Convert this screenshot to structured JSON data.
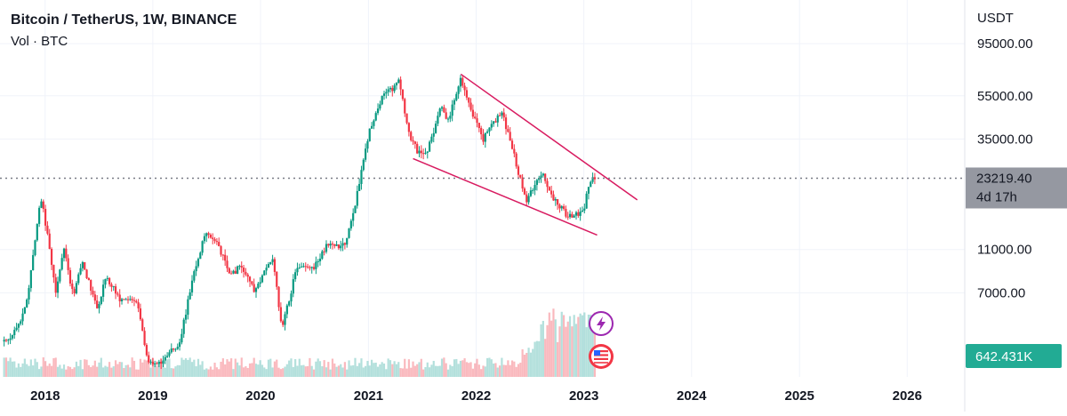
{
  "header": {
    "title": "Bitcoin / TetherUS, 1W, BINANCE",
    "volume_label": "Vol · BTC"
  },
  "colors": {
    "up": "#26a69a",
    "up_candle": "#089981",
    "down": "#f23645",
    "trendline": "#d81b60",
    "grid": "#f0f3fa",
    "price_badge_bg": "#9598a1",
    "volume_badge_bg": "#22ab94",
    "lightning_icon": "#9c27b0",
    "flag_icon": "#f23645"
  },
  "icons": [
    "lightning-icon",
    "us-flag-icon"
  ],
  "chart_data": {
    "type": "candlestick",
    "title": "Bitcoin / TetherUS, 1W, BINANCE",
    "currency": "USDT",
    "scale": "log",
    "grid": true,
    "y_ticks": [
      "95000.00",
      "55000.00",
      "35000.00",
      "11000.00",
      "7000.00"
    ],
    "y_tick_values": [
      95000,
      55000,
      35000,
      11000,
      7000
    ],
    "ylim": [
      2900,
      150000
    ],
    "x_ticks": [
      "2018",
      "2019",
      "2020",
      "2021",
      "2022",
      "2023",
      "2024",
      "2025",
      "2026"
    ],
    "xlim": [
      "2017-08-01",
      "2026-07-15"
    ],
    "last_price": {
      "value": "23219.40",
      "countdown": "4d 17h"
    },
    "volume": {
      "series_name": "Vol · BTC",
      "last_value": "642.431K"
    },
    "price_path": [
      [
        "2017-08-15",
        4200
      ],
      [
        "2017-10-01",
        4800
      ],
      [
        "2017-11-01",
        6500
      ],
      [
        "2017-12-17",
        19500
      ],
      [
        "2018-01-15",
        11500
      ],
      [
        "2018-02-06",
        7000
      ],
      [
        "2018-03-05",
        11000
      ],
      [
        "2018-04-06",
        6800
      ],
      [
        "2018-05-05",
        9800
      ],
      [
        "2018-06-28",
        5900
      ],
      [
        "2018-07-25",
        8300
      ],
      [
        "2018-09-15",
        6400
      ],
      [
        "2018-11-10",
        6350
      ],
      [
        "2018-12-15",
        3300
      ],
      [
        "2019-02-01",
        3450
      ],
      [
        "2019-04-01",
        4100
      ],
      [
        "2019-05-15",
        8000
      ],
      [
        "2019-06-26",
        13000
      ],
      [
        "2019-08-10",
        11500
      ],
      [
        "2019-09-25",
        8300
      ],
      [
        "2019-10-26",
        9400
      ],
      [
        "2019-12-15",
        7100
      ],
      [
        "2020-02-12",
        10300
      ],
      [
        "2020-03-12",
        4800
      ],
      [
        "2020-05-01",
        8800
      ],
      [
        "2020-07-01",
        9200
      ],
      [
        "2020-08-15",
        11800
      ],
      [
        "2020-10-15",
        11400
      ],
      [
        "2020-11-20",
        18500
      ],
      [
        "2021-01-08",
        40000
      ],
      [
        "2021-02-20",
        55000
      ],
      [
        "2021-04-14",
        63500
      ],
      [
        "2021-05-19",
        36000
      ],
      [
        "2021-06-22",
        30000
      ],
      [
        "2021-07-20",
        31000
      ],
      [
        "2021-09-06",
        51000
      ],
      [
        "2021-09-25",
        41500
      ],
      [
        "2021-11-10",
        67500
      ],
      [
        "2021-12-10",
        48000
      ],
      [
        "2022-01-24",
        35000
      ],
      [
        "2022-03-28",
        47000
      ],
      [
        "2022-05-12",
        29000
      ],
      [
        "2022-06-18",
        18000
      ],
      [
        "2022-08-14",
        24500
      ],
      [
        "2022-09-21",
        18800
      ],
      [
        "2022-11-09",
        15600
      ],
      [
        "2022-12-31",
        16500
      ],
      [
        "2023-01-20",
        22800
      ],
      [
        "2023-02-07",
        23219
      ]
    ],
    "trendlines": [
      {
        "name": "upper",
        "start": [
          "2021-11-10",
          69000
        ],
        "end": [
          "2023-07-01",
          18500
        ]
      },
      {
        "name": "lower",
        "start": [
          "2021-06-01",
          28500
        ],
        "end": [
          "2023-02-15",
          12800
        ]
      }
    ]
  }
}
